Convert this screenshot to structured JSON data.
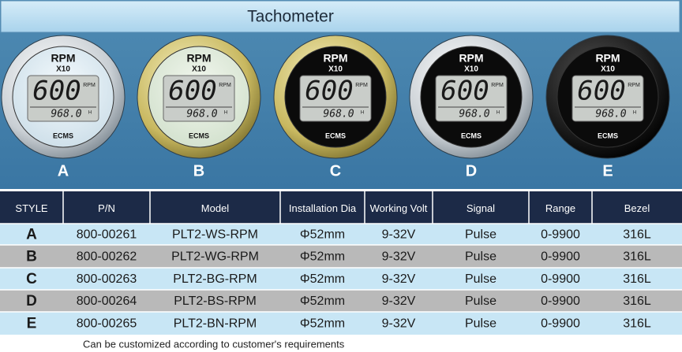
{
  "header": {
    "title": "Tachometer"
  },
  "gauge_face": {
    "label": "RPM",
    "multiplier": "X10",
    "reading": "600",
    "reading_unit": "RPM",
    "hours": "968.0",
    "hours_unit": "H",
    "brand": "ECMS"
  },
  "gauges": [
    {
      "letter": "A"
    },
    {
      "letter": "B"
    },
    {
      "letter": "C"
    },
    {
      "letter": "D"
    },
    {
      "letter": "E"
    }
  ],
  "table": {
    "columns": [
      "STYLE",
      "P/N",
      "Model",
      "Installation Dia",
      "Working Volt",
      "Signal",
      "Range",
      "Bezel"
    ],
    "rows": [
      [
        "A",
        "800-00261",
        "PLT2-WS-RPM",
        "Φ52mm",
        "9-32V",
        "Pulse",
        "0-9900",
        "316L"
      ],
      [
        "B",
        "800-00262",
        "PLT2-WG-RPM",
        "Φ52mm",
        "9-32V",
        "Pulse",
        "0-9900",
        "316L"
      ],
      [
        "C",
        "800-00263",
        "PLT2-BG-RPM",
        "Φ52mm",
        "9-32V",
        "Pulse",
        "0-9900",
        "316L"
      ],
      [
        "D",
        "800-00264",
        "PLT2-BS-RPM",
        "Φ52mm",
        "9-32V",
        "Pulse",
        "0-9900",
        "316L"
      ],
      [
        "E",
        "800-00265",
        "PLT2-BN-RPM",
        "Φ52mm",
        "9-32V",
        "Pulse",
        "0-9900",
        "316L"
      ]
    ]
  },
  "footer": "Can be customized according to customer's requirements"
}
